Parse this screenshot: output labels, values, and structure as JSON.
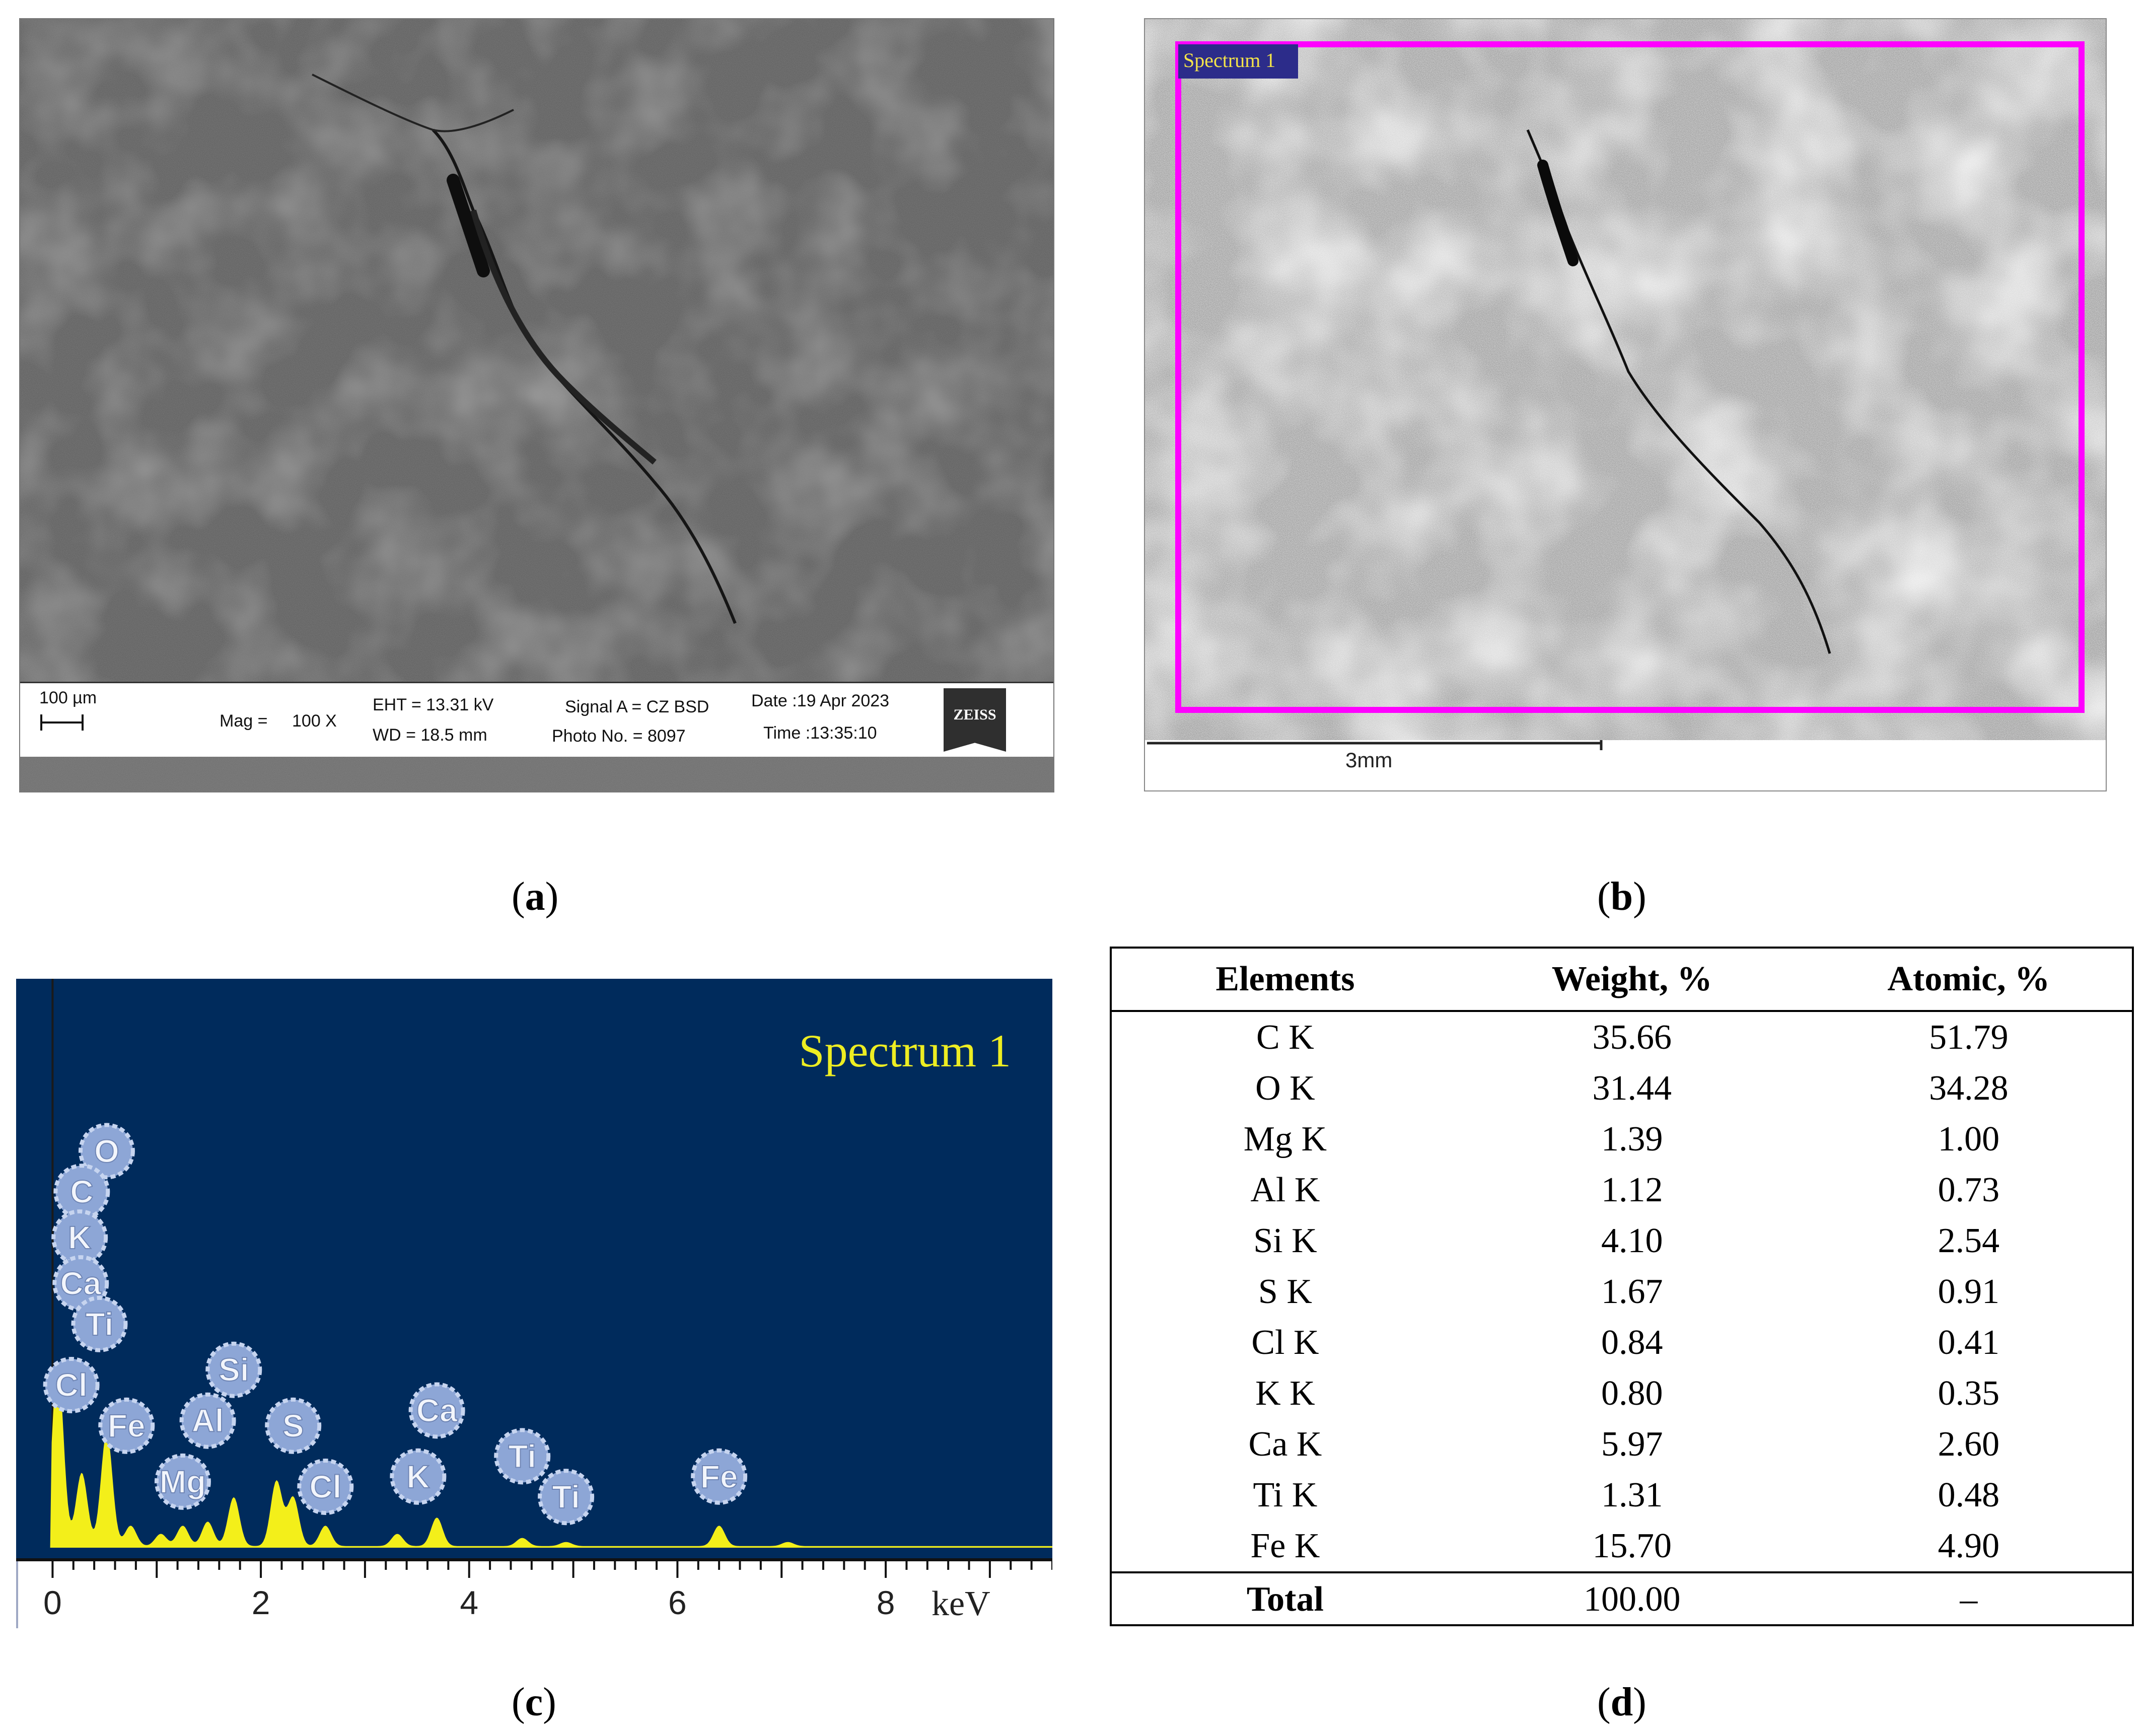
{
  "figure": {
    "panels": [
      {
        "id": "a",
        "label": "a"
      },
      {
        "id": "b",
        "label": "b"
      },
      {
        "id": "c",
        "label": "c"
      },
      {
        "id": "d",
        "label": "d"
      }
    ]
  },
  "sem_info": {
    "scale": "100 µm",
    "mag_label": "Mag =",
    "mag_value": "100 X",
    "eht": "EHT = 13.31 kV",
    "wd": "WD = 18.5 mm",
    "signal": "Signal A = CZ BSD",
    "photo": "Photo No. = 8097",
    "date": "Date :19 Apr 2023",
    "time": "Time :13:35:10",
    "logo": "ZEISS"
  },
  "map": {
    "region_label": "Spectrum 1",
    "scale": "3mm",
    "region_color": "#ff00ff"
  },
  "chart_data": {
    "type": "line",
    "title": "Spectrum 1",
    "xlabel": "keV",
    "xlim": [
      -0.35,
      9.6
    ],
    "xticks": [
      0,
      2,
      4,
      6,
      8
    ],
    "background": "#002b5c",
    "line_color": "#f3ef1a",
    "label_color": "#eded22",
    "peaks": [
      {
        "x": 0.05,
        "h": 0.45
      },
      {
        "x": 0.28,
        "h": 0.18
      },
      {
        "x": 0.52,
        "h": 0.28
      },
      {
        "x": 0.75,
        "h": 0.05
      },
      {
        "x": 1.04,
        "h": 0.03
      },
      {
        "x": 1.25,
        "h": 0.05
      },
      {
        "x": 1.49,
        "h": 0.06
      },
      {
        "x": 1.74,
        "h": 0.12
      },
      {
        "x": 2.15,
        "h": 0.16
      },
      {
        "x": 2.31,
        "h": 0.12
      },
      {
        "x": 2.62,
        "h": 0.05
      },
      {
        "x": 3.31,
        "h": 0.03
      },
      {
        "x": 3.69,
        "h": 0.07
      },
      {
        "x": 4.51,
        "h": 0.02
      },
      {
        "x": 4.93,
        "h": 0.01
      },
      {
        "x": 6.4,
        "h": 0.05
      },
      {
        "x": 7.06,
        "h": 0.01
      }
    ],
    "element_markers": [
      {
        "label": "O",
        "x": 0.52,
        "level": 0.76
      },
      {
        "label": "C",
        "x": 0.28,
        "level": 0.68
      },
      {
        "label": "K",
        "x": 0.26,
        "level": 0.59
      },
      {
        "label": "Ca",
        "x": 0.27,
        "level": 0.5
      },
      {
        "label": "Ti",
        "x": 0.45,
        "level": 0.42
      },
      {
        "label": "Cl",
        "x": 0.18,
        "level": 0.3
      },
      {
        "label": "Si",
        "x": 1.74,
        "level": 0.33
      },
      {
        "label": "Fe",
        "x": 0.71,
        "level": 0.22
      },
      {
        "label": "Al",
        "x": 1.49,
        "level": 0.23
      },
      {
        "label": "S",
        "x": 2.31,
        "level": 0.22
      },
      {
        "label": "Mg",
        "x": 1.25,
        "level": 0.11
      },
      {
        "label": "Cl",
        "x": 2.62,
        "level": 0.1
      },
      {
        "label": "Ca",
        "x": 3.69,
        "level": 0.25
      },
      {
        "label": "K",
        "x": 3.51,
        "level": 0.12
      },
      {
        "label": "Ti",
        "x": 4.51,
        "level": 0.16
      },
      {
        "label": "Ti",
        "x": 4.93,
        "level": 0.08
      },
      {
        "label": "Fe",
        "x": 6.4,
        "level": 0.12
      }
    ]
  },
  "table": {
    "headers": [
      "Elements",
      "Weight, %",
      "Atomic, %"
    ],
    "rows": [
      [
        "C K",
        "35.66",
        "51.79"
      ],
      [
        "O K",
        "31.44",
        "34.28"
      ],
      [
        "Mg K",
        "1.39",
        "1.00"
      ],
      [
        "Al K",
        "1.12",
        "0.73"
      ],
      [
        "Si K",
        "4.10",
        "2.54"
      ],
      [
        "S K",
        "1.67",
        "0.91"
      ],
      [
        "Cl K",
        "0.84",
        "0.41"
      ],
      [
        "K K",
        "0.80",
        "0.35"
      ],
      [
        "Ca K",
        "5.97",
        "2.60"
      ],
      [
        "Ti K",
        "1.31",
        "0.48"
      ],
      [
        "Fe K",
        "15.70",
        "4.90"
      ]
    ],
    "total": [
      "Total",
      "100.00",
      "–"
    ]
  }
}
